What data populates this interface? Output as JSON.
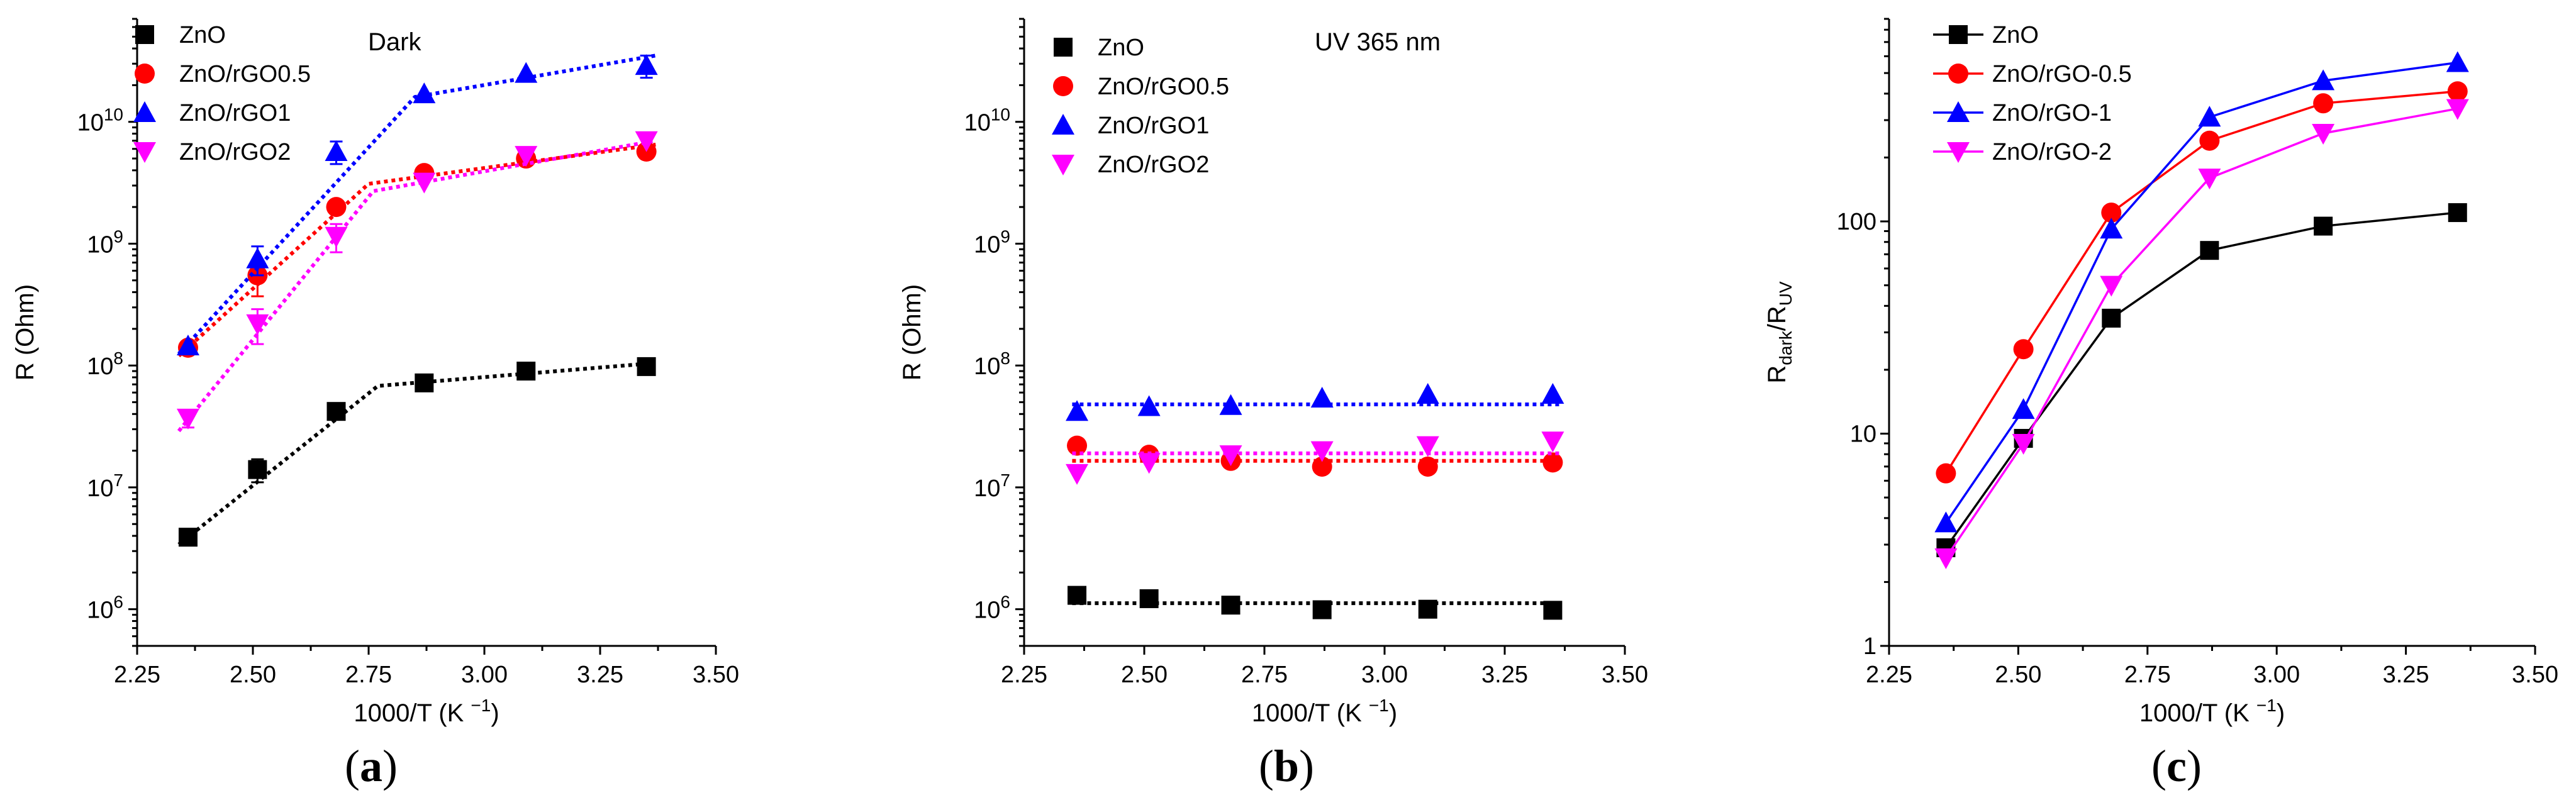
{
  "chart_data": [
    {
      "id": "a",
      "panel_label": "a",
      "type": "scatter",
      "yscale": "log",
      "annotation": "Dark",
      "xlabel": "1000/T (K",
      "xlabel_sup": "−1",
      "ylabel": "R (Ohm)",
      "xlim": [
        2.25,
        3.5
      ],
      "xticks": [
        "2.25",
        "2.50",
        "2.75",
        "3.00",
        "3.25",
        "3.50"
      ],
      "ylim": [
        500000,
        70000000000
      ],
      "yticks": [
        {
          "value": 1000000,
          "base": "10",
          "exp": "6"
        },
        {
          "value": 10000000,
          "base": "10",
          "exp": "7"
        },
        {
          "value": 100000000,
          "base": "10",
          "exp": "8"
        },
        {
          "value": 1000000000,
          "base": "10",
          "exp": "9"
        },
        {
          "value": 10000000000,
          "base": "10",
          "exp": "10"
        }
      ],
      "legend_position": "top-left",
      "series": [
        {
          "name": "ZnO",
          "marker": "square",
          "color": "#000000",
          "x": [
            2.36,
            2.51,
            2.68,
            2.87,
            3.09,
            3.35
          ],
          "y": [
            3900000,
            14000000,
            42000000,
            72000000,
            90000000,
            98000000
          ],
          "err": [
            0,
            3000000,
            0,
            0,
            0,
            0
          ],
          "fit": [
            [
              2.34,
              3400000
            ],
            [
              2.77,
              68000000
            ],
            [
              3.37,
              105000000
            ]
          ]
        },
        {
          "name": "ZnO/rGO0.5",
          "marker": "circle",
          "color": "#ff0000",
          "x": [
            2.36,
            2.51,
            2.68,
            2.87,
            3.09,
            3.35
          ],
          "y": [
            140000000,
            550000000,
            2000000000,
            3800000000,
            5000000000,
            5700000000
          ],
          "err": [
            0,
            180000000,
            0,
            0,
            0,
            0
          ],
          "fit": [
            [
              2.34,
              120000000
            ],
            [
              2.75,
              3100000000
            ],
            [
              3.37,
              6500000000
            ]
          ]
        },
        {
          "name": "ZnO/rGO1",
          "marker": "triangle-up",
          "color": "#0000ff",
          "x": [
            2.36,
            2.51,
            2.68,
            2.87,
            3.09,
            3.35
          ],
          "y": [
            145000000,
            750000000,
            5700000000,
            17000000000,
            25000000000,
            29000000000
          ],
          "err": [
            0,
            200000000,
            1200000000,
            0,
            0,
            6000000000
          ],
          "fit": [
            [
              2.34,
              125000000
            ],
            [
              2.85,
              16000000000
            ],
            [
              3.37,
              35000000000
            ]
          ]
        },
        {
          "name": "ZnO/rGO2",
          "marker": "triangle-down",
          "color": "#ff00ff",
          "x": [
            2.36,
            2.51,
            2.68,
            2.87,
            3.09,
            3.35
          ],
          "y": [
            37000000,
            220000000,
            1150000000,
            3200000000,
            5300000000,
            7000000000
          ],
          "err": [
            6000000,
            70000000,
            300000000,
            0,
            0,
            0
          ],
          "fit": [
            [
              2.34,
              29000000
            ],
            [
              2.76,
              2700000000
            ],
            [
              3.37,
              7000000000
            ]
          ]
        }
      ]
    },
    {
      "id": "b",
      "panel_label": "b",
      "type": "scatter",
      "yscale": "log",
      "annotation": "UV 365 nm",
      "xlabel": "1000/T (K",
      "xlabel_sup": "−1",
      "ylabel": "R (Ohm)",
      "xlim": [
        2.25,
        3.5
      ],
      "xticks": [
        "2.25",
        "2.50",
        "2.75",
        "3.00",
        "3.25",
        "3.50"
      ],
      "ylim": [
        500000,
        70000000000
      ],
      "yticks": [
        {
          "value": 1000000,
          "base": "10",
          "exp": "6"
        },
        {
          "value": 10000000,
          "base": "10",
          "exp": "7"
        },
        {
          "value": 100000000,
          "base": "10",
          "exp": "8"
        },
        {
          "value": 1000000000,
          "base": "10",
          "exp": "9"
        },
        {
          "value": 10000000000,
          "base": "10",
          "exp": "10"
        }
      ],
      "legend_position": "top-left",
      "series": [
        {
          "name": "ZnO",
          "marker": "square",
          "color": "#000000",
          "x": [
            2.36,
            2.51,
            2.68,
            2.87,
            3.09,
            3.35
          ],
          "y": [
            1300000,
            1220000,
            1080000,
            990000,
            1000000,
            980000
          ],
          "fit": [
            [
              2.35,
              1120000
            ],
            [
              3.37,
              1120000
            ]
          ]
        },
        {
          "name": "ZnO/rGO0.5",
          "marker": "circle",
          "color": "#ff0000",
          "x": [
            2.36,
            2.51,
            2.68,
            2.87,
            3.09,
            3.35
          ],
          "y": [
            22000000,
            18500000,
            16500000,
            14800000,
            14800000,
            16000000
          ],
          "fit": [
            [
              2.35,
              16500000
            ],
            [
              3.37,
              16500000
            ]
          ]
        },
        {
          "name": "ZnO/rGO1",
          "marker": "triangle-up",
          "color": "#0000ff",
          "x": [
            2.36,
            2.51,
            2.68,
            2.87,
            3.09,
            3.35
          ],
          "y": [
            42000000,
            46000000,
            47000000,
            54000000,
            58000000,
            58000000
          ],
          "fit": [
            [
              2.35,
              48000000
            ],
            [
              3.37,
              48000000
            ]
          ]
        },
        {
          "name": "ZnO/rGO2",
          "marker": "triangle-down",
          "color": "#ff00ff",
          "x": [
            2.36,
            2.51,
            2.68,
            2.87,
            3.09,
            3.35
          ],
          "y": [
            13000000,
            16000000,
            18500000,
            20000000,
            22000000,
            24000000
          ],
          "fit": [
            [
              2.35,
              19000000
            ],
            [
              3.37,
              19000000
            ]
          ]
        }
      ]
    },
    {
      "id": "c",
      "panel_label": "c",
      "type": "line",
      "yscale": "log",
      "xlabel": "1000/T (K",
      "xlabel_sup": "−1",
      "ylabel_main": "R",
      "ylabel_sub1": "dark",
      "ylabel_sep": "/R",
      "ylabel_sub2": "UV",
      "xlim": [
        2.25,
        3.5
      ],
      "xticks": [
        "2.25",
        "2.50",
        "2.75",
        "3.00",
        "3.25",
        "3.50"
      ],
      "ylim": [
        1,
        900
      ],
      "yticks": [
        {
          "value": 1,
          "label": "1"
        },
        {
          "value": 10,
          "label": "10"
        },
        {
          "value": 100,
          "label": "100"
        }
      ],
      "legend_position": "top-left",
      "series": [
        {
          "name": "ZnO",
          "marker": "square",
          "color": "#000000",
          "x": [
            2.36,
            2.51,
            2.68,
            2.87,
            3.09,
            3.35
          ],
          "y": [
            2.9,
            9.5,
            35,
            73,
            95,
            110
          ]
        },
        {
          "name": "ZnO/rGO-0.5",
          "marker": "circle",
          "color": "#ff0000",
          "x": [
            2.36,
            2.51,
            2.68,
            2.87,
            3.09,
            3.35
          ],
          "y": [
            6.5,
            25,
            110,
            240,
            360,
            410
          ]
        },
        {
          "name": "ZnO/rGO-1",
          "marker": "triangle-up",
          "color": "#0000ff",
          "x": [
            2.36,
            2.51,
            2.68,
            2.87,
            3.09,
            3.35
          ],
          "y": [
            3.8,
            13,
            92,
            310,
            460,
            560
          ]
        },
        {
          "name": "ZnO/rGO-2",
          "marker": "triangle-down",
          "color": "#ff00ff",
          "x": [
            2.36,
            2.51,
            2.68,
            2.87,
            3.09,
            3.35
          ],
          "y": [
            2.6,
            9,
            50,
            160,
            260,
            340
          ]
        }
      ]
    }
  ]
}
